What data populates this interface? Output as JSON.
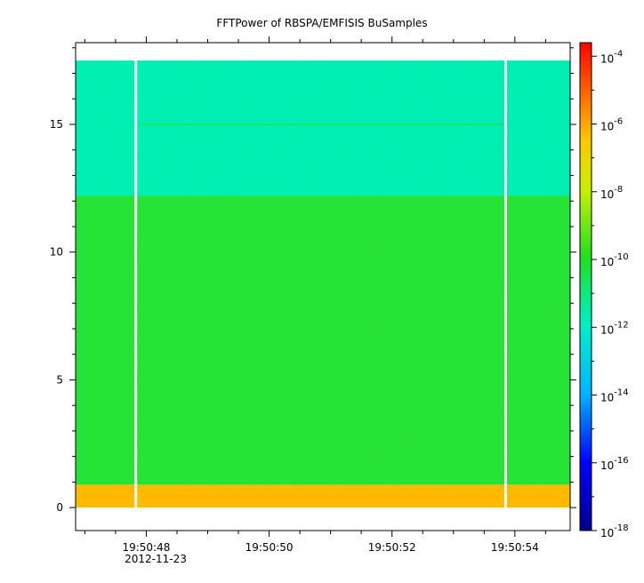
{
  "chart_data": {
    "type": "heatmap",
    "title": "FFTPower of RBSPA/EMFISIS  BuSamples",
    "xlabel": "",
    "ylabel": "",
    "x_axis": {
      "tick_labels": [
        "19:50:48",
        "19:50:50",
        "19:50:52",
        "19:50:54"
      ],
      "tick_seconds": [
        48,
        50,
        52,
        54
      ],
      "date_label": "2012-11-23",
      "range_seconds": [
        46.85,
        54.9
      ]
    },
    "y_axis": {
      "tick_values": [
        0,
        5,
        10,
        15
      ],
      "range": [
        -0.9,
        18.2
      ]
    },
    "colorbar": {
      "scale": "log",
      "tick_exponents": [
        -4,
        -6,
        -8,
        -10,
        -12,
        -14,
        -16,
        -18
      ],
      "tick_base": "10",
      "range_exponent": [
        -18,
        -3.6
      ]
    },
    "bands": [
      {
        "y_from": 0,
        "y_to": 0.9,
        "level_exponent": -6.5
      },
      {
        "y_from": 0.9,
        "y_to": 12.2,
        "level_exponent": -10.3
      },
      {
        "y_from": 12.2,
        "y_to": 17.5,
        "level_exponent": -11.9
      }
    ],
    "line_feature": {
      "y": 15,
      "level_exponent": -10.8
    },
    "data_extent": {
      "x_seconds": [
        46.85,
        54.9
      ],
      "y": [
        0,
        17.5
      ]
    },
    "data_gaps_seconds": [
      47.83,
      53.85
    ],
    "colors": {
      "gap": "#ffffff",
      "axis": "#000000"
    },
    "grid": false
  }
}
